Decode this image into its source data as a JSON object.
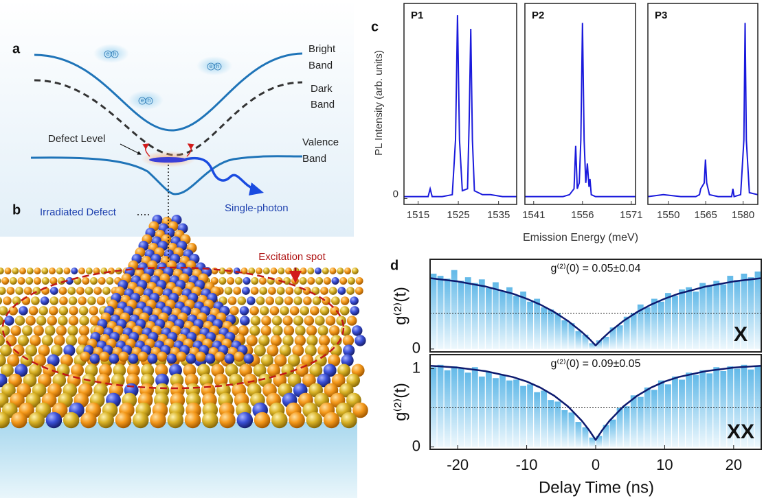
{
  "diagram_a": {
    "panel_label": "a",
    "bright_band": [
      "Bright",
      "Band"
    ],
    "dark_band": [
      "Dark",
      "Band"
    ],
    "valence_band": [
      "Valence",
      "Band"
    ],
    "defect_level": "Defect Level",
    "single_photon": "Single-photon",
    "carrier": [
      "e",
      "h"
    ]
  },
  "illustration_b": {
    "panel_label": "b",
    "irradiated_defect": "Irradiated Defect",
    "excitation_spot": "Excitation spot"
  },
  "figure_c": {
    "panel_label": "c",
    "ylabel": "PL Intensity (arb. units)",
    "xlabel": "Emission Energy (meV)"
  },
  "figure_d": {
    "panel_label": "d",
    "ylabel": "g⁽²⁾(t)",
    "xlabel": "Delay Time (ns)"
  },
  "chart_data": [
    {
      "type": "line",
      "title": "P1",
      "color": "#1a1adc",
      "x": [
        1511.5,
        1515,
        1517.5,
        1518,
        1518.5,
        1521,
        1523.5,
        1524.3,
        1524.8,
        1525.3,
        1526,
        1527.3,
        1527.7,
        1528.1,
        1528.5,
        1529,
        1531,
        1533,
        1536,
        1539.5
      ],
      "values": [
        0.01,
        0.01,
        0.01,
        0.05,
        0.01,
        0.01,
        0.02,
        0.3,
        0.94,
        0.3,
        0.04,
        0.05,
        0.4,
        0.87,
        0.3,
        0.04,
        0.02,
        0.02,
        0.01,
        0.01
      ],
      "xlim": [
        1511.5,
        1539.5
      ],
      "xticks": [
        1515,
        1525,
        1535
      ],
      "ylim": [
        -0.03,
        1.0
      ],
      "yticks": [
        0
      ]
    },
    {
      "type": "line",
      "title": "P2",
      "color": "#1a1adc",
      "x": [
        1538.3,
        1545,
        1550,
        1552,
        1553.4,
        1553.9,
        1554.4,
        1555,
        1555.5,
        1556,
        1556.5,
        1557,
        1557.5,
        1558,
        1558.3,
        1558.7,
        1560,
        1565,
        1572.3
      ],
      "values": [
        0.01,
        0.01,
        0.01,
        0.02,
        0.05,
        0.27,
        0.05,
        0.08,
        0.3,
        0.9,
        0.3,
        0.08,
        0.18,
        0.06,
        0.1,
        0.02,
        0.01,
        0.01,
        0.01
      ],
      "xlim": [
        1538.3,
        1572.3
      ],
      "xticks": [
        1541,
        1556,
        1571
      ],
      "ylim": [
        -0.03,
        1.0
      ]
    },
    {
      "type": "line",
      "title": "P3",
      "color": "#1a1adc",
      "x": [
        1541.8,
        1548,
        1555,
        1561,
        1562.5,
        1563,
        1564.4,
        1564.9,
        1565.4,
        1566.5,
        1570,
        1575.4,
        1575.9,
        1576.4,
        1579,
        1580.3,
        1580.8,
        1581.3,
        1582.5,
        1585.9
      ],
      "values": [
        0.01,
        0.02,
        0.01,
        0.01,
        0.02,
        0.05,
        0.08,
        0.2,
        0.08,
        0.02,
        0.01,
        0.01,
        0.05,
        0.01,
        0.02,
        0.3,
        0.9,
        0.3,
        0.03,
        0.02
      ],
      "xlim": [
        1541.8,
        1585.9
      ],
      "xticks": [
        1550,
        1565,
        1580
      ],
      "ylim": [
        -0.03,
        1.0
      ]
    },
    {
      "type": "histogram",
      "annotation": "g⁽²⁾(0) = 0.05±0.04",
      "label": "X",
      "color": "#7cc6ec",
      "bins": [
        -24,
        -23,
        -22,
        -21,
        -20,
        -19,
        -18,
        -17,
        -16,
        -15,
        -14,
        -13,
        -12,
        -11,
        -10,
        -9,
        -8,
        -7,
        -6,
        -5,
        -4,
        -3,
        -2,
        -1,
        0,
        1,
        2,
        3,
        4,
        5,
        6,
        7,
        8,
        9,
        10,
        11,
        12,
        13,
        14,
        15,
        16,
        17,
        18,
        19,
        20,
        21,
        22,
        23,
        24
      ],
      "counts": [
        1.05,
        1.02,
        0.98,
        1.1,
        0.95,
        1.0,
        0.92,
        0.97,
        0.85,
        0.93,
        0.8,
        0.86,
        0.74,
        0.8,
        0.66,
        0.7,
        0.58,
        0.55,
        0.5,
        0.4,
        0.36,
        0.25,
        0.2,
        0.08,
        0.12,
        0.17,
        0.3,
        0.33,
        0.45,
        0.5,
        0.62,
        0.58,
        0.7,
        0.66,
        0.78,
        0.74,
        0.83,
        0.86,
        0.8,
        0.92,
        0.88,
        0.95,
        0.9,
        1.02,
        0.96,
        1.05,
        1.0,
        1.08
      ],
      "fit": {
        "color": "#0d1a6e",
        "x": [
          -24,
          -20,
          -16,
          -12,
          -10,
          -8,
          -6,
          -4,
          -2,
          -1,
          0,
          1,
          2,
          4,
          6,
          8,
          10,
          12,
          16,
          20,
          24
        ],
        "values": [
          0.987,
          0.941,
          0.872,
          0.77,
          0.701,
          0.617,
          0.515,
          0.39,
          0.237,
          0.148,
          0.05,
          0.148,
          0.237,
          0.39,
          0.515,
          0.617,
          0.701,
          0.77,
          0.872,
          0.941,
          0.987
        ]
      },
      "hline": 0.5,
      "xlim": [
        -24,
        24
      ],
      "ylim": [
        -0.04,
        1.25
      ],
      "yticks": [
        0
      ]
    },
    {
      "type": "histogram",
      "annotation": "g⁽²⁾(0) = 0.09±0.05",
      "label": "XX",
      "color": "#7cc6ec",
      "bins": [
        -24,
        -23,
        -22,
        -21,
        -20,
        -19,
        -18,
        -17,
        -16,
        -15,
        -14,
        -13,
        -12,
        -11,
        -10,
        -9,
        -8,
        -7,
        -6,
        -5,
        -4,
        -3,
        -2,
        -1,
        0,
        1,
        2,
        3,
        4,
        5,
        6,
        7,
        8,
        9,
        10,
        11,
        12,
        13,
        14,
        15,
        16,
        17,
        18,
        19,
        20,
        21,
        22,
        23,
        24
      ],
      "counts": [
        1.02,
        1.05,
        0.98,
        1.03,
        1.0,
        0.95,
        1.02,
        0.9,
        0.96,
        0.88,
        0.92,
        0.85,
        0.86,
        0.78,
        0.8,
        0.7,
        0.72,
        0.6,
        0.58,
        0.47,
        0.44,
        0.32,
        0.25,
        0.12,
        0.14,
        0.28,
        0.35,
        0.5,
        0.52,
        0.66,
        0.64,
        0.76,
        0.73,
        0.85,
        0.8,
        0.9,
        0.86,
        0.95,
        0.92,
        0.98,
        0.94,
        1.02,
        0.97,
        1.03,
        1.0,
        1.05,
        0.99,
        1.04
      ],
      "fit": {
        "color": "#0d1a6e",
        "x": [
          -24,
          -20,
          -16,
          -12,
          -10,
          -8,
          -6,
          -4,
          -2,
          -1,
          0,
          1,
          2,
          4,
          6,
          8,
          10,
          12,
          16,
          20,
          24
        ],
        "values": [
          1.038,
          1.014,
          0.97,
          0.893,
          0.836,
          0.757,
          0.654,
          0.517,
          0.334,
          0.22,
          0.09,
          0.22,
          0.334,
          0.517,
          0.654,
          0.757,
          0.836,
          0.893,
          0.97,
          1.014,
          1.038
        ]
      },
      "hline": 0.5,
      "xlim": [
        -24,
        24
      ],
      "ylim": [
        -0.03,
        1.18
      ],
      "yticks": [
        0,
        1
      ],
      "xticks": [
        -20,
        -10,
        0,
        10,
        20
      ]
    }
  ]
}
